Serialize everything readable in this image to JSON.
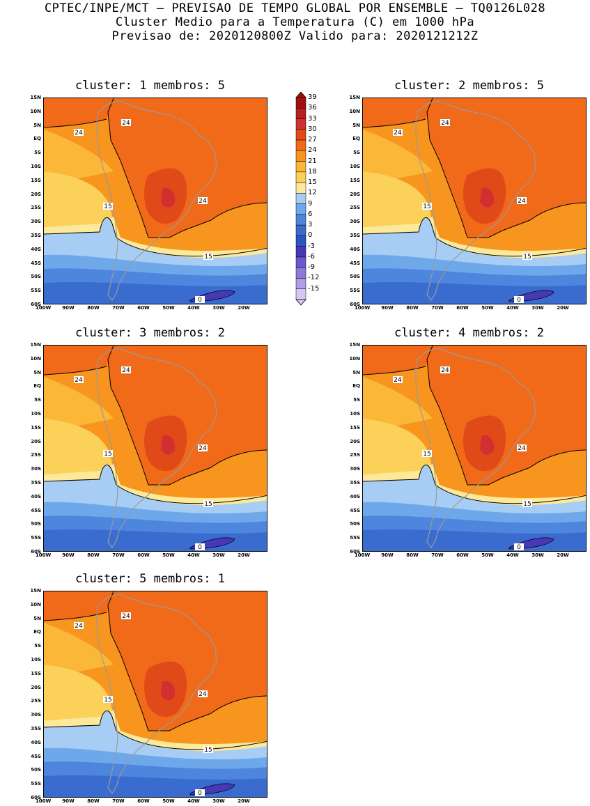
{
  "header": {
    "line1": "CPTEC/INPE/MCT — PREVISAO DE TEMPO GLOBAL POR ENSEMBLE — TQ0126L028",
    "line2": "Cluster Medio para a Temperatura (C) em 1000 hPa",
    "line3": "Previsao de: 2020120800Z   Valido para: 2020121212Z"
  },
  "panels": [
    {
      "title": "cluster: 1   membros: 5"
    },
    {
      "title": "cluster: 2   membros: 5"
    },
    {
      "title": "cluster: 3   membros: 2"
    },
    {
      "title": "cluster: 4   membros: 2"
    },
    {
      "title": "cluster: 5   membros: 1"
    }
  ],
  "lat_labels": [
    "15N",
    "10N",
    "5N",
    "EQ",
    "5S",
    "10S",
    "15S",
    "20S",
    "25S",
    "30S",
    "35S",
    "40S",
    "45S",
    "50S",
    "55S",
    "60S"
  ],
  "lon_labels": [
    "100W",
    "90W",
    "80W",
    "70W",
    "60W",
    "50W",
    "40W",
    "30W",
    "20W"
  ],
  "colorbar": {
    "labels": [
      "39",
      "36",
      "33",
      "30",
      "27",
      "24",
      "21",
      "18",
      "15",
      "12",
      "9",
      "6",
      "3",
      "0",
      "-3",
      "-6",
      "-9",
      "-12",
      "-15"
    ],
    "colors": [
      "#a01010",
      "#b82020",
      "#d03030",
      "#e04a18",
      "#f06a1a",
      "#f7951f",
      "#fbb838",
      "#fbd15a",
      "#fde99b",
      "#a7cdf4",
      "#6fa8ea",
      "#4d86dc",
      "#3a6cd0",
      "#2d55c0",
      "#4738b5",
      "#6d58cc",
      "#907ad9",
      "#b39ce6",
      "#d6c8f2"
    ]
  },
  "contour_labels": {
    "c24": "24",
    "c15": "15",
    "c0": "0"
  },
  "colors": {
    "hot": "#f06a1a",
    "vhot": "#e04a18",
    "xhot": "#d03030",
    "warm": "#f7951f",
    "mild": "#fbb838",
    "yellow": "#fbd15a",
    "pale": "#fde99b",
    "lblue": "#a7cdf4",
    "blue1": "#6fa8ea",
    "blue2": "#4d86dc",
    "blue3": "#3a6cd0",
    "deep": "#4738b5",
    "land_line": "#9a9a9a"
  }
}
